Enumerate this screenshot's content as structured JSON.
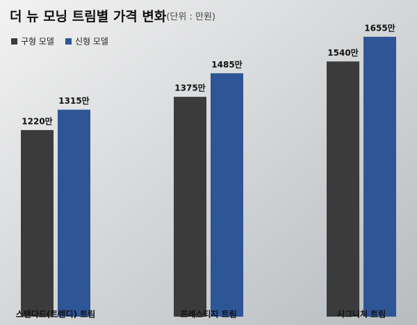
{
  "chart_data": {
    "type": "bar",
    "title": "더 뉴 모닝 트림별 가격 변화",
    "subtitle": "(단위 : 만원)",
    "categories": [
      "스탠다드(트렌디) 트림",
      "프레스티지 트림",
      "시그니처 트림"
    ],
    "series": [
      {
        "name": "구형 모델",
        "color": "#3b3b3b",
        "values": [
          1220,
          1375,
          1540
        ],
        "value_labels": [
          "1220만",
          "1375만",
          "1540만"
        ]
      },
      {
        "name": "신형 모델",
        "color": "#2e5596",
        "values": [
          1315,
          1485,
          1655
        ],
        "value_labels": [
          "1315만",
          "1485만",
          "1655만"
        ]
      }
    ],
    "ylim": [
      350,
      1700
    ],
    "legend": "top-left"
  }
}
